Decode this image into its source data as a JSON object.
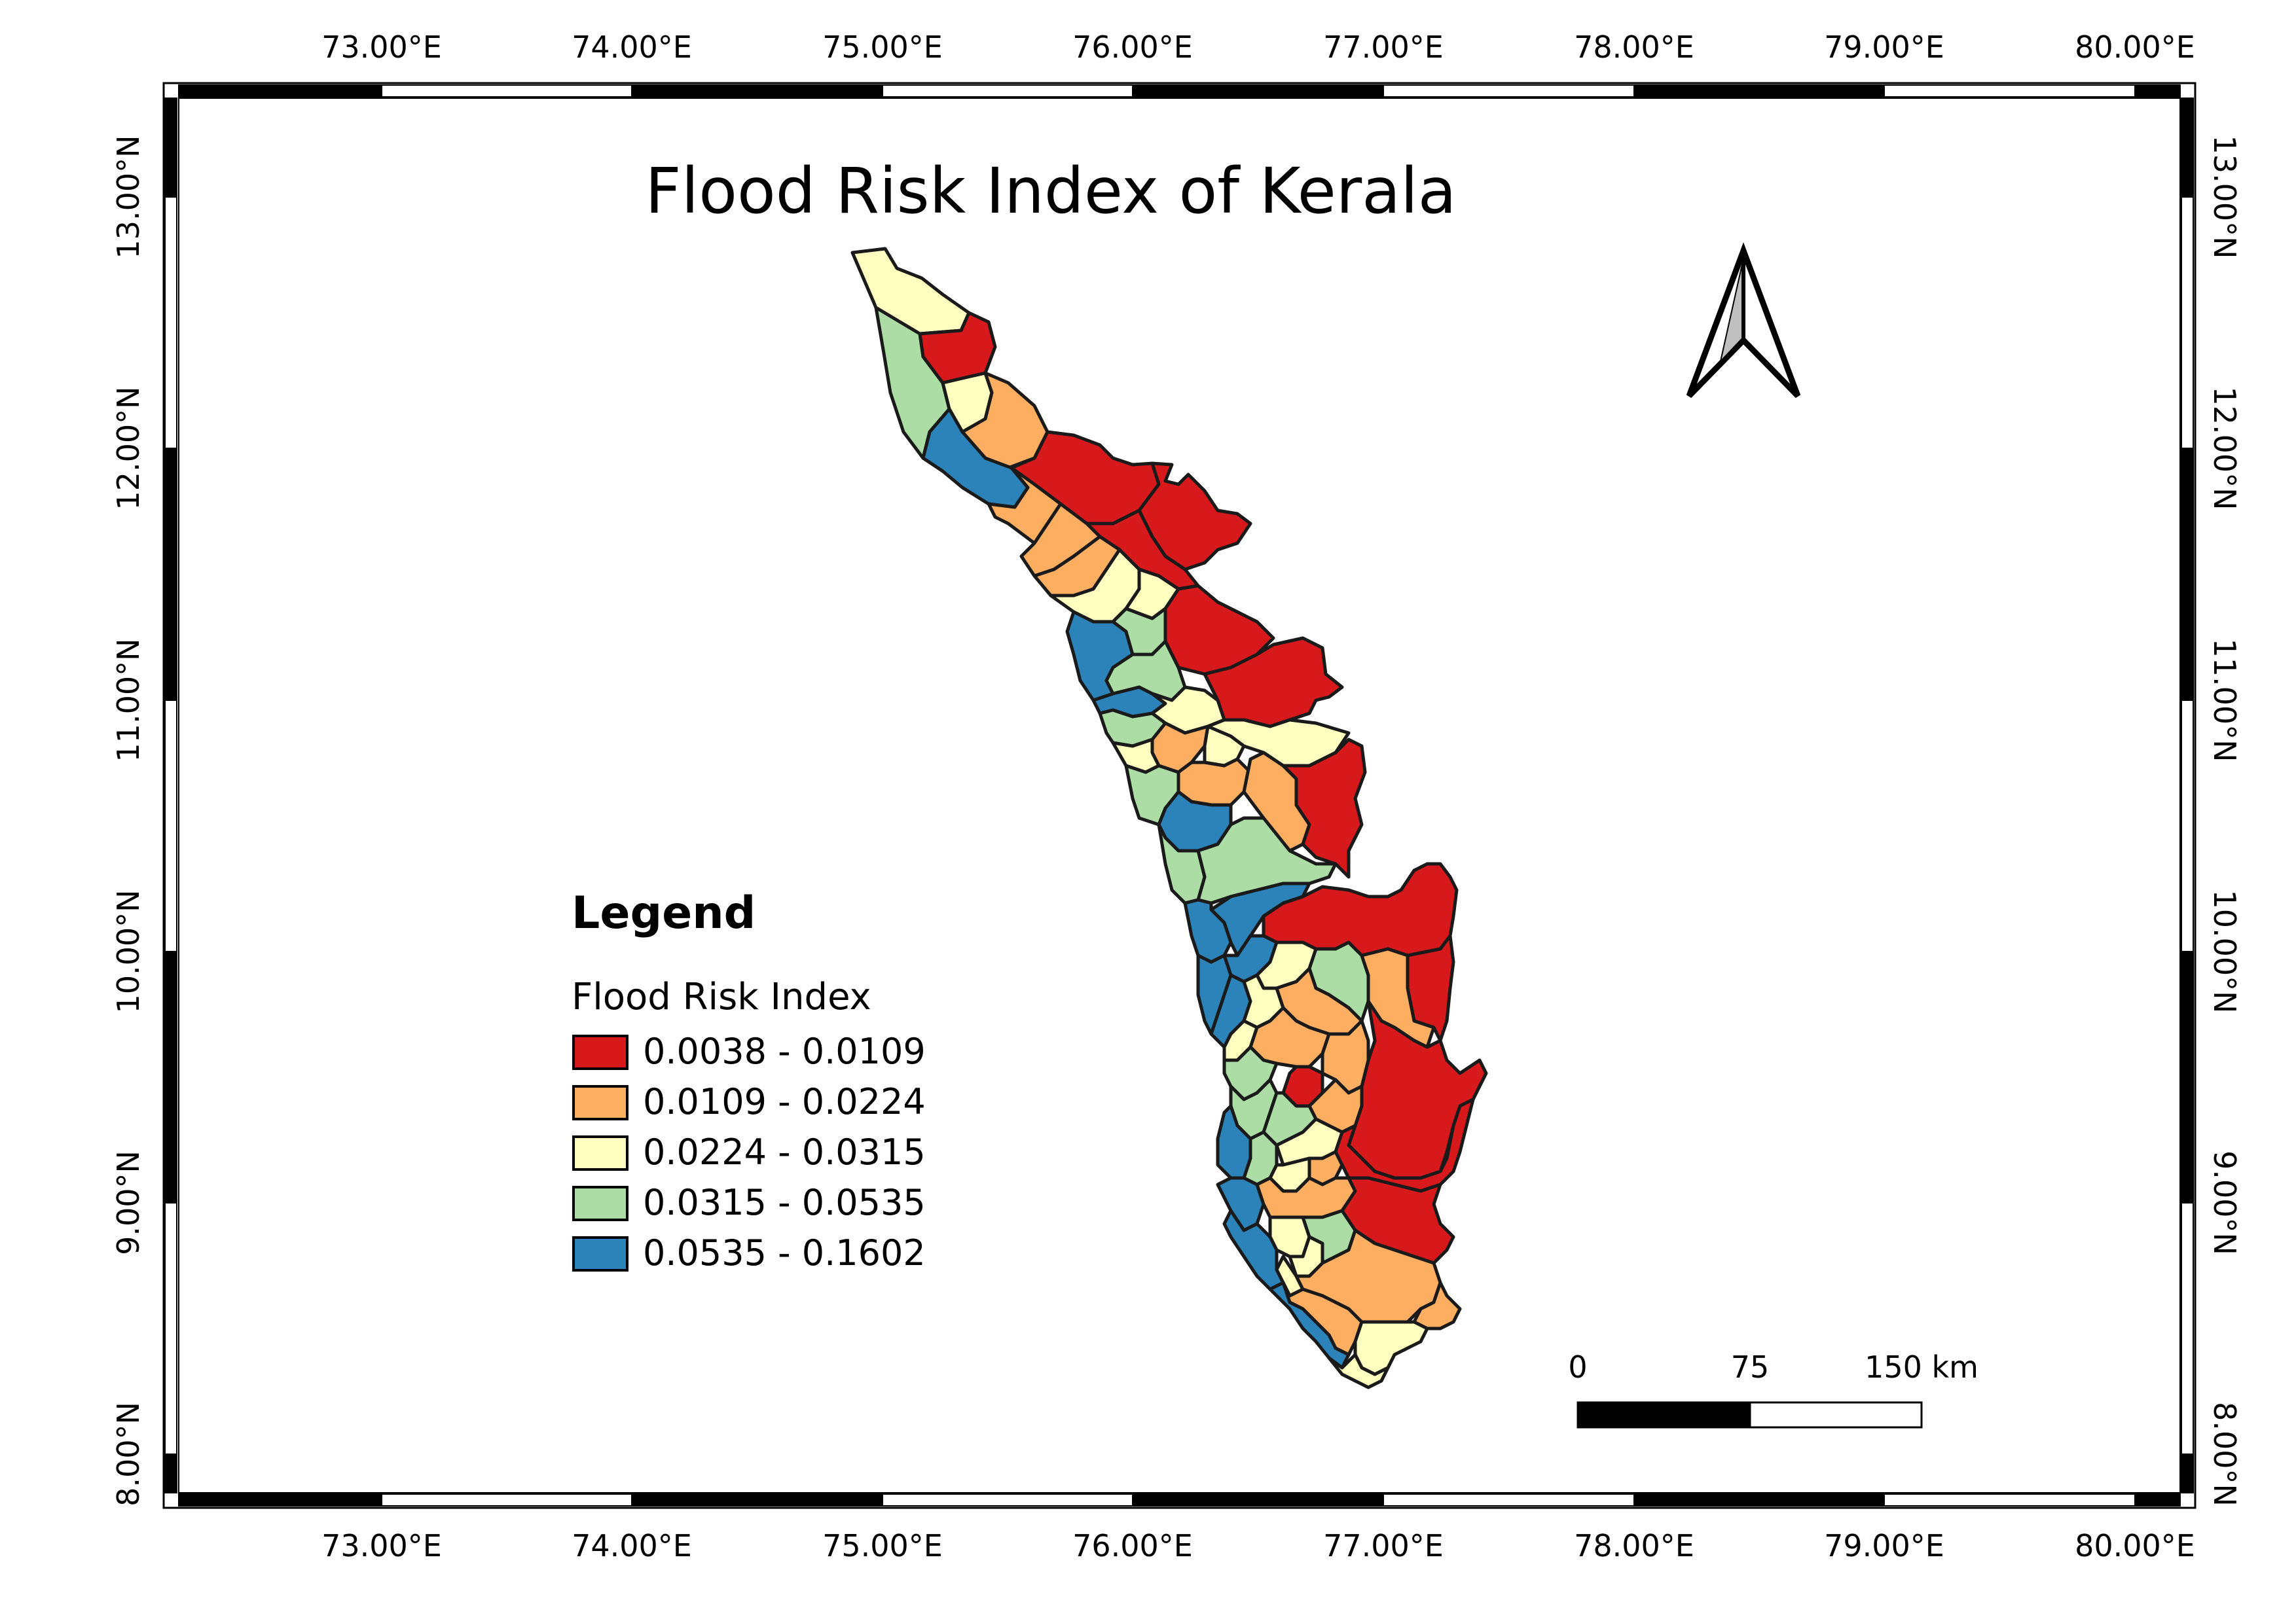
{
  "map": {
    "title": "Flood Risk Index of Kerala",
    "grid": {
      "lon_labels": [
        "73.00°E",
        "74.00°E",
        "75.00°E",
        "76.00°E",
        "77.00°E",
        "78.00°E",
        "79.00°E",
        "80.00°E"
      ],
      "lat_labels": [
        "8.00°N",
        "9.00°N",
        "10.00°N",
        "11.00°N",
        "12.00°N",
        "13.00°N"
      ]
    },
    "legend": {
      "heading": "Legend",
      "subtitle": "Flood Risk Index",
      "classes": [
        {
          "label": "0.0038 - 0.0109",
          "color": "#d7191c"
        },
        {
          "label": "0.0109 - 0.0224",
          "color": "#fdae61"
        },
        {
          "label": "0.0224 - 0.0315",
          "color": "#ffffbf"
        },
        {
          "label": "0.0315 - 0.0535",
          "color": "#abdda4"
        },
        {
          "label": "0.0535 - 0.1602",
          "color": "#2b83ba"
        }
      ]
    },
    "scale_bar": {
      "labels": [
        "0",
        "75",
        "150 km"
      ]
    },
    "north_arrow": {
      "icon": "north-arrow-icon"
    },
    "districts_colors": {
      "red": "#d7191c",
      "orange": "#fdae61",
      "yellow": "#ffffbf",
      "green": "#abdda4",
      "blue": "#2b83ba"
    }
  }
}
